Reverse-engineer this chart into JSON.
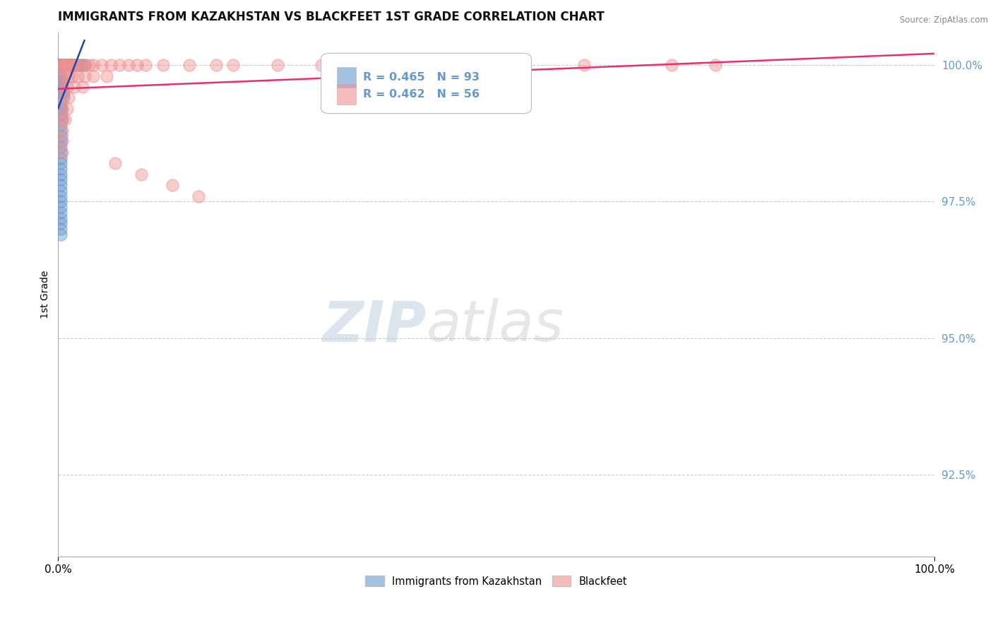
{
  "title": "IMMIGRANTS FROM KAZAKHSTAN VS BLACKFEET 1ST GRADE CORRELATION CHART",
  "source": "Source: ZipAtlas.com",
  "ylabel": "1st Grade",
  "xlim": [
    0,
    1
  ],
  "ylim": [
    0.91,
    1.006
  ],
  "yticks": [
    0.925,
    0.95,
    0.975,
    1.0
  ],
  "ytick_labels": [
    "92.5%",
    "95.0%",
    "97.5%",
    "100.0%"
  ],
  "xticks": [
    0.0,
    1.0
  ],
  "xtick_labels": [
    "0.0%",
    "100.0%"
  ],
  "blue_R": 0.465,
  "blue_N": 93,
  "pink_R": 0.462,
  "pink_N": 56,
  "blue_color": "#6699CC",
  "pink_color": "#F09090",
  "blue_line_color": "#2244AA",
  "pink_line_color": "#E83070",
  "legend_label_blue": "Immigrants from Kazakhstan",
  "legend_label_pink": "Blackfeet",
  "blue_x": [
    0.001,
    0.001,
    0.001,
    0.001,
    0.001,
    0.002,
    0.002,
    0.002,
    0.002,
    0.002,
    0.002,
    0.002,
    0.002,
    0.003,
    0.003,
    0.003,
    0.003,
    0.003,
    0.003,
    0.003,
    0.003,
    0.003,
    0.003,
    0.003,
    0.003,
    0.003,
    0.003,
    0.004,
    0.004,
    0.004,
    0.004,
    0.004,
    0.005,
    0.005,
    0.005,
    0.005,
    0.006,
    0.006,
    0.006,
    0.007,
    0.007,
    0.008,
    0.008,
    0.009,
    0.01,
    0.01,
    0.011,
    0.012,
    0.013,
    0.014,
    0.015,
    0.016,
    0.018,
    0.02,
    0.022,
    0.025,
    0.028,
    0.03,
    0.003,
    0.003,
    0.003,
    0.004,
    0.004,
    0.005,
    0.005,
    0.006,
    0.006,
    0.003,
    0.003,
    0.004,
    0.004,
    0.005,
    0.003,
    0.003,
    0.004,
    0.003,
    0.003,
    0.003,
    0.003,
    0.003,
    0.003,
    0.003,
    0.003,
    0.003,
    0.003,
    0.003,
    0.003,
    0.003,
    0.003,
    0.003,
    0.003,
    0.003,
    0.003
  ],
  "blue_y": [
    1.0,
    1.0,
    1.0,
    1.0,
    1.0,
    1.0,
    1.0,
    1.0,
    1.0,
    1.0,
    1.0,
    1.0,
    1.0,
    1.0,
    1.0,
    1.0,
    1.0,
    1.0,
    1.0,
    1.0,
    1.0,
    1.0,
    1.0,
    1.0,
    1.0,
    1.0,
    1.0,
    1.0,
    1.0,
    1.0,
    1.0,
    1.0,
    1.0,
    1.0,
    1.0,
    1.0,
    1.0,
    1.0,
    1.0,
    1.0,
    1.0,
    1.0,
    1.0,
    1.0,
    1.0,
    1.0,
    1.0,
    1.0,
    1.0,
    1.0,
    1.0,
    1.0,
    1.0,
    1.0,
    1.0,
    1.0,
    1.0,
    1.0,
    0.998,
    0.998,
    0.997,
    0.997,
    0.996,
    0.996,
    0.995,
    0.995,
    0.994,
    0.993,
    0.992,
    0.992,
    0.991,
    0.99,
    0.989,
    0.988,
    0.987,
    0.986,
    0.985,
    0.984,
    0.983,
    0.982,
    0.981,
    0.98,
    0.979,
    0.978,
    0.977,
    0.976,
    0.975,
    0.974,
    0.973,
    0.972,
    0.971,
    0.97,
    0.969
  ],
  "pink_x": [
    0.002,
    0.004,
    0.006,
    0.008,
    0.01,
    0.012,
    0.015,
    0.018,
    0.02,
    0.025,
    0.03,
    0.035,
    0.04,
    0.05,
    0.06,
    0.07,
    0.08,
    0.09,
    0.1,
    0.12,
    0.15,
    0.18,
    0.004,
    0.008,
    0.012,
    0.016,
    0.022,
    0.03,
    0.04,
    0.055,
    0.005,
    0.01,
    0.018,
    0.028,
    0.005,
    0.012,
    0.005,
    0.01,
    0.005,
    0.008,
    0.005,
    0.005,
    0.005,
    0.2,
    0.25,
    0.3,
    0.35,
    0.4,
    0.5,
    0.6,
    0.7,
    0.75,
    0.065,
    0.095,
    0.13,
    0.16
  ],
  "pink_y": [
    1.0,
    1.0,
    1.0,
    1.0,
    1.0,
    1.0,
    1.0,
    1.0,
    1.0,
    1.0,
    1.0,
    1.0,
    1.0,
    1.0,
    1.0,
    1.0,
    1.0,
    1.0,
    1.0,
    1.0,
    1.0,
    1.0,
    0.998,
    0.998,
    0.998,
    0.998,
    0.998,
    0.998,
    0.998,
    0.998,
    0.996,
    0.996,
    0.996,
    0.996,
    0.994,
    0.994,
    0.992,
    0.992,
    0.99,
    0.99,
    0.988,
    0.986,
    0.984,
    1.0,
    1.0,
    1.0,
    1.0,
    1.0,
    1.0,
    1.0,
    1.0,
    1.0,
    0.982,
    0.98,
    0.978,
    0.976
  ]
}
